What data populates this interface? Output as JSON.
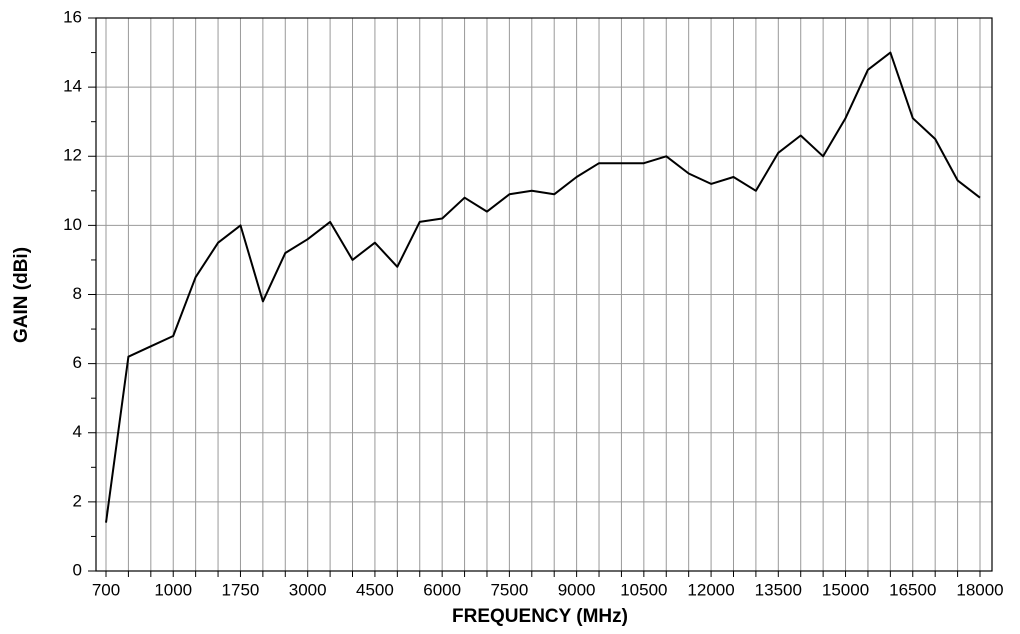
{
  "chart_data": {
    "type": "line",
    "xlabel": "FREQUENCY (MHz)",
    "ylabel": "GAIN (dBi)",
    "categories": [
      "700",
      null,
      null,
      "1000",
      null,
      null,
      "1750",
      null,
      null,
      "3000",
      null,
      null,
      "4500",
      null,
      null,
      "6000",
      null,
      null,
      "7500",
      null,
      null,
      "9000",
      null,
      null,
      "10500",
      null,
      null,
      "12000",
      null,
      null,
      "13500",
      null,
      null,
      "15000",
      null,
      null,
      "16500",
      null,
      null,
      "18000"
    ],
    "series": [
      {
        "name": "GAIN",
        "color": "#000000",
        "values": [
          1.4,
          6.2,
          6.5,
          6.8,
          8.5,
          9.5,
          10.0,
          7.8,
          9.2,
          9.6,
          10.1,
          9.0,
          9.5,
          8.8,
          10.1,
          10.2,
          10.8,
          10.4,
          10.9,
          11.0,
          10.9,
          11.4,
          11.8,
          11.8,
          11.8,
          12.0,
          11.5,
          11.2,
          11.4,
          11.0,
          12.1,
          12.6,
          12.0,
          13.1,
          14.5,
          15.0,
          13.1,
          12.5,
          11.3,
          10.8
        ]
      }
    ],
    "ylim": [
      0,
      16
    ],
    "yticks": [
      0,
      2,
      4,
      6,
      8,
      10,
      12,
      14,
      16
    ],
    "yminor": [
      1,
      3,
      5,
      7,
      9,
      11,
      13,
      15
    ],
    "grid": true
  }
}
